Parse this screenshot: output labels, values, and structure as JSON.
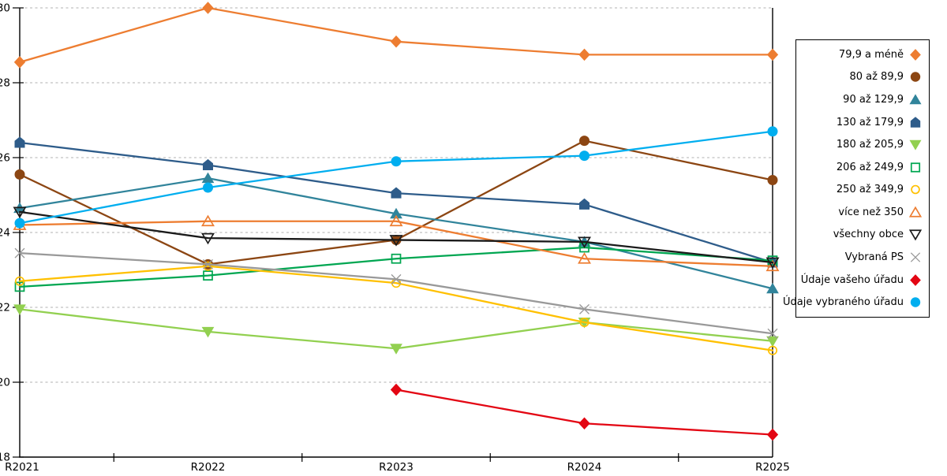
{
  "chart_data": {
    "type": "line",
    "title": "",
    "xlabel": "",
    "ylabel": "",
    "categories": [
      "R2021",
      "R2022",
      "R2023",
      "R2024",
      "R2025"
    ],
    "ylim": [
      18,
      30
    ],
    "yticks": [
      18,
      20,
      22,
      24,
      26,
      28,
      30
    ],
    "yticklabels": [
      "18",
      "20",
      "22",
      "24",
      "26",
      "28",
      "30"
    ],
    "grid": "horizontal-dashed",
    "gridline_color": "#B0B0B0",
    "axis_color": "#000000",
    "legend_position": "right-outside-box",
    "series": [
      {
        "name": "79,9 a méně",
        "marker": "diamond",
        "fill": "solid",
        "color": "#ED7D31",
        "values": [
          28.55,
          30.0,
          29.1,
          28.75,
          28.75
        ]
      },
      {
        "name": "80 až 89,9",
        "marker": "circle",
        "fill": "solid",
        "color": "#8C4613",
        "values": [
          25.55,
          23.15,
          23.8,
          26.45,
          25.4
        ]
      },
      {
        "name": "90 až 129,9",
        "marker": "triangle-up",
        "fill": "solid",
        "color": "#31849B",
        "values": [
          24.65,
          25.45,
          24.5,
          23.75,
          22.5
        ]
      },
      {
        "name": "130 až 179,9",
        "marker": "pentagon",
        "fill": "solid",
        "color": "#2E5C8A",
        "values": [
          26.4,
          25.8,
          25.05,
          24.75,
          23.2
        ]
      },
      {
        "name": "180 až 205,9",
        "marker": "triangle-down",
        "fill": "solid",
        "color": "#92D050",
        "values": [
          21.95,
          21.35,
          20.9,
          21.6,
          21.1
        ]
      },
      {
        "name": "206 až 249,9",
        "marker": "square",
        "fill": "open",
        "color": "#00A651",
        "values": [
          22.55,
          22.85,
          23.3,
          23.6,
          23.25
        ]
      },
      {
        "name": "250 až 349,9",
        "marker": "circle",
        "fill": "open",
        "color": "#FFC000",
        "values": [
          22.7,
          23.1,
          22.65,
          21.6,
          20.85
        ]
      },
      {
        "name": "více než 350",
        "marker": "triangle-up",
        "fill": "open",
        "color": "#ED7D31",
        "values": [
          24.2,
          24.3,
          24.3,
          23.3,
          23.1
        ]
      },
      {
        "name": "všechny obce",
        "marker": "triangle-down",
        "fill": "open",
        "color": "#1A1A1A",
        "values": [
          24.55,
          23.85,
          23.8,
          23.75,
          23.2
        ]
      },
      {
        "name": "Vybraná PS",
        "marker": "x",
        "fill": "open",
        "color": "#999999",
        "values": [
          23.45,
          23.15,
          22.75,
          21.95,
          21.3
        ]
      },
      {
        "name": "Údaje vašeho úřadu",
        "marker": "diamond",
        "fill": "solid",
        "color": "#E30613",
        "values": [
          null,
          null,
          19.8,
          18.9,
          18.6
        ]
      },
      {
        "name": "Údaje vybraného úřadu",
        "marker": "circle",
        "fill": "solid",
        "color": "#00AEEF",
        "values": [
          24.25,
          25.2,
          25.9,
          26.05,
          26.7
        ]
      }
    ]
  }
}
